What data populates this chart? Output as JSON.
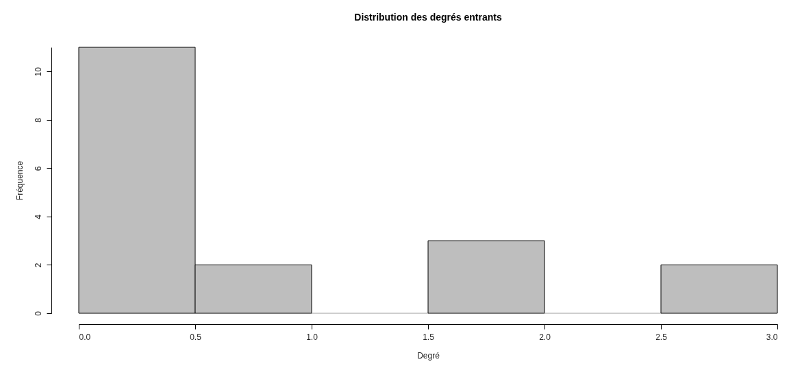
{
  "chart_data": {
    "type": "histogram",
    "title": "Distribution des degrés entrants",
    "xlabel": "Degré",
    "ylabel": "Fréquence",
    "bins": [
      0,
      0.5,
      1,
      1.5,
      2,
      2.5,
      3
    ],
    "values": [
      11,
      2,
      0,
      3,
      0,
      2
    ],
    "color": "#bebebe",
    "xlim": [
      0,
      3
    ],
    "xticks": [
      {
        "value": 0,
        "label": "0.0"
      },
      0.5,
      {
        "value": 1,
        "label": "1.0"
      },
      1.5,
      {
        "value": 2,
        "label": "2.0"
      },
      2.5,
      {
        "value": 3,
        "label": "3.0"
      }
    ],
    "ylim": [
      0,
      11
    ],
    "yticks": [
      0,
      2,
      4,
      6,
      8,
      10
    ],
    "grid": false
  }
}
